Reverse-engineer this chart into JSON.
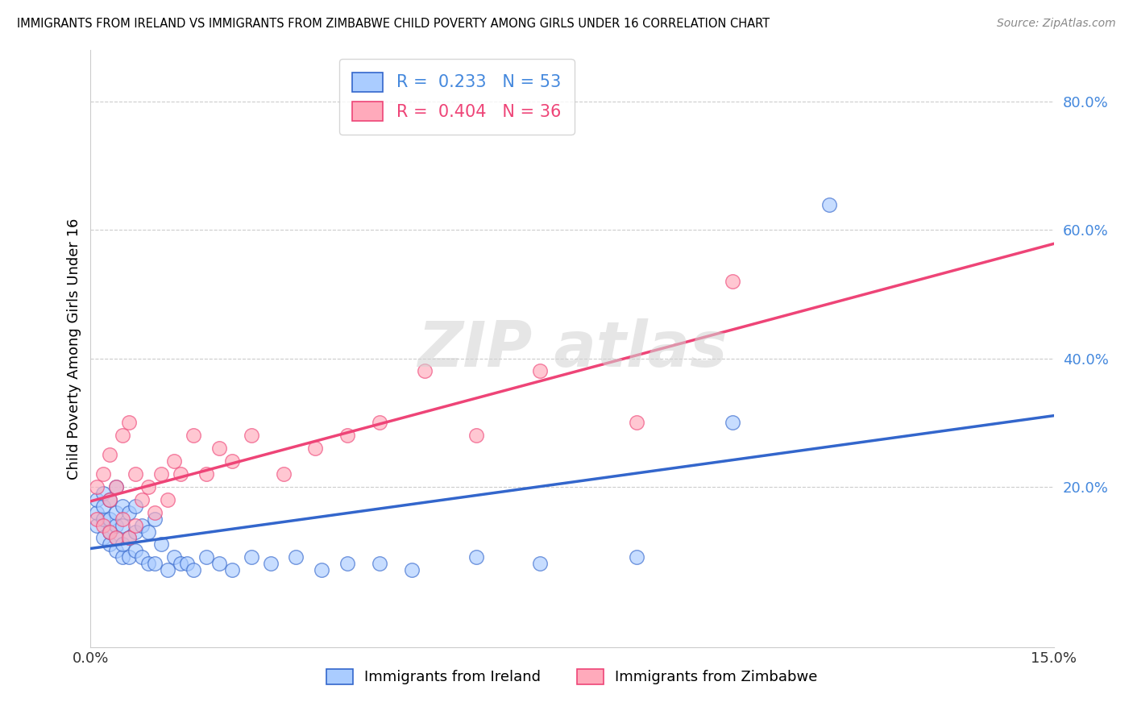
{
  "title": "IMMIGRANTS FROM IRELAND VS IMMIGRANTS FROM ZIMBABWE CHILD POVERTY AMONG GIRLS UNDER 16 CORRELATION CHART",
  "source": "Source: ZipAtlas.com",
  "ylabel_label": "Child Poverty Among Girls Under 16",
  "xlim": [
    0.0,
    0.15
  ],
  "ylim": [
    -0.05,
    0.88
  ],
  "ytick_vals": [
    0.0,
    0.2,
    0.4,
    0.6,
    0.8
  ],
  "ytick_labels": [
    "",
    "20.0%",
    "40.0%",
    "60.0%",
    "80.0%"
  ],
  "ireland_R": 0.233,
  "ireland_N": 53,
  "zimbabwe_R": 0.404,
  "zimbabwe_N": 36,
  "ireland_color": "#aaccff",
  "zimbabwe_color": "#ffaabb",
  "ireland_line_color": "#3366cc",
  "zimbabwe_line_color": "#ee4477",
  "ireland_x": [
    0.001,
    0.001,
    0.001,
    0.002,
    0.002,
    0.002,
    0.002,
    0.003,
    0.003,
    0.003,
    0.003,
    0.004,
    0.004,
    0.004,
    0.004,
    0.004,
    0.005,
    0.005,
    0.005,
    0.005,
    0.006,
    0.006,
    0.006,
    0.007,
    0.007,
    0.007,
    0.008,
    0.008,
    0.009,
    0.009,
    0.01,
    0.01,
    0.011,
    0.012,
    0.013,
    0.014,
    0.015,
    0.016,
    0.018,
    0.02,
    0.022,
    0.025,
    0.028,
    0.032,
    0.036,
    0.04,
    0.045,
    0.05,
    0.06,
    0.07,
    0.085,
    0.1,
    0.115
  ],
  "ireland_y": [
    0.14,
    0.16,
    0.18,
    0.12,
    0.15,
    0.17,
    0.19,
    0.11,
    0.13,
    0.15,
    0.18,
    0.1,
    0.12,
    0.14,
    0.16,
    0.2,
    0.09,
    0.11,
    0.14,
    0.17,
    0.09,
    0.12,
    0.16,
    0.1,
    0.13,
    0.17,
    0.09,
    0.14,
    0.08,
    0.13,
    0.08,
    0.15,
    0.11,
    0.07,
    0.09,
    0.08,
    0.08,
    0.07,
    0.09,
    0.08,
    0.07,
    0.09,
    0.08,
    0.09,
    0.07,
    0.08,
    0.08,
    0.07,
    0.09,
    0.08,
    0.09,
    0.3,
    0.64
  ],
  "zimbabwe_x": [
    0.001,
    0.001,
    0.002,
    0.002,
    0.003,
    0.003,
    0.003,
    0.004,
    0.004,
    0.005,
    0.005,
    0.006,
    0.006,
    0.007,
    0.007,
    0.008,
    0.009,
    0.01,
    0.011,
    0.012,
    0.013,
    0.014,
    0.016,
    0.018,
    0.02,
    0.022,
    0.025,
    0.03,
    0.035,
    0.04,
    0.045,
    0.052,
    0.06,
    0.07,
    0.085,
    0.1
  ],
  "zimbabwe_y": [
    0.15,
    0.2,
    0.14,
    0.22,
    0.13,
    0.18,
    0.25,
    0.12,
    0.2,
    0.15,
    0.28,
    0.12,
    0.3,
    0.14,
    0.22,
    0.18,
    0.2,
    0.16,
    0.22,
    0.18,
    0.24,
    0.22,
    0.28,
    0.22,
    0.26,
    0.24,
    0.28,
    0.22,
    0.26,
    0.28,
    0.3,
    0.38,
    0.28,
    0.38,
    0.3,
    0.52
  ],
  "legend_ireland_label": "R =  0.233   N = 53",
  "legend_zimbabwe_label": "R =  0.404   N = 36",
  "bottom_legend_ireland": "Immigrants from Ireland",
  "bottom_legend_zimbabwe": "Immigrants from Zimbabwe"
}
